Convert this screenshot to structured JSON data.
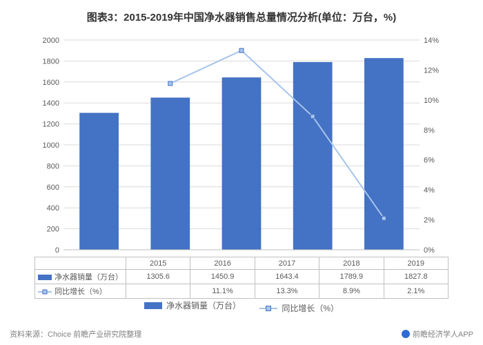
{
  "title": "图表3：2015-2019年中国净水器销售总量情况分析(单位：万台，%)",
  "chart": {
    "type": "bar+line",
    "categories": [
      "2015",
      "2016",
      "2017",
      "2018",
      "2019"
    ],
    "bar_series": {
      "name": "净水器销量（万台）",
      "values": [
        1305.6,
        1450.9,
        1643.4,
        1789.9,
        1827.8
      ],
      "color": "#4472c4"
    },
    "line_series": {
      "name": "同比增长（%）",
      "values": [
        null,
        11.1,
        13.3,
        8.9,
        2.1
      ],
      "display": [
        "",
        "11.1%",
        "13.3%",
        "8.9%",
        "2.1%"
      ],
      "color": "#a6c4ec",
      "marker_border": "#4472c4"
    },
    "y_left": {
      "min": 0,
      "max": 2000,
      "step": 200,
      "ticks": [
        0,
        200,
        400,
        600,
        800,
        1000,
        1200,
        1400,
        1600,
        1800,
        2000
      ]
    },
    "y_right": {
      "min": 0,
      "max": 14,
      "step": 2,
      "ticks": [
        0,
        2,
        4,
        6,
        8,
        10,
        12,
        14
      ],
      "suffix": "%"
    },
    "grid_color": "#d9d9d9",
    "axis_color": "#bfbfbf",
    "text_color": "#595959",
    "background": "#ffffff",
    "bar_width_ratio": 0.55,
    "label_fontsize": 11
  },
  "table": {
    "row1_label": "净水器销量（万台）",
    "row2_label": "同比增长（%）"
  },
  "legend": {
    "bar": "净水器销量（万台）",
    "line": "同比增长（%）"
  },
  "source": "资料来源：Choice 前瞻产业研究院整理",
  "brand": "前瞻经济学人APP"
}
